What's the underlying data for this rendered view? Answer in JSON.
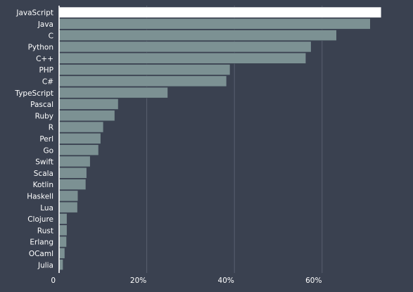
{
  "chart_data": {
    "type": "bar",
    "orientation": "horizontal",
    "categories": [
      "JavaScript",
      "Java",
      "C",
      "Python",
      "C++",
      "PHP",
      "C#",
      "TypeScript",
      "Pascal",
      "Ruby",
      "R",
      "Perl",
      "Go",
      "Swift",
      "Scala",
      "Kotlin",
      "Haskell",
      "Lua",
      "Clojure",
      "Rust",
      "Erlang",
      "OCaml",
      "Julia"
    ],
    "values": [
      73.5,
      71.0,
      63.3,
      57.5,
      56.3,
      39.0,
      38.2,
      24.8,
      13.5,
      12.7,
      10.1,
      9.5,
      9.0,
      7.1,
      6.3,
      6.1,
      4.3,
      4.2,
      1.8,
      1.8,
      1.7,
      1.3,
      0.9
    ],
    "highlight_index": 0,
    "xlim": [
      0,
      80
    ],
    "xticks": [
      0,
      20,
      40,
      60
    ],
    "xtick_labels": [
      "0",
      "20%",
      "40%",
      "60%"
    ],
    "grid": "vertical",
    "title": "",
    "xlabel": "",
    "ylabel": "",
    "colors": {
      "background": "#3a4150",
      "bar": "#7c9193",
      "bar_highlight": "#ffffff",
      "bar_stroke": "#3a4150",
      "grid": "#596070",
      "axis": "#ffffff",
      "label": "#ffffff"
    }
  }
}
